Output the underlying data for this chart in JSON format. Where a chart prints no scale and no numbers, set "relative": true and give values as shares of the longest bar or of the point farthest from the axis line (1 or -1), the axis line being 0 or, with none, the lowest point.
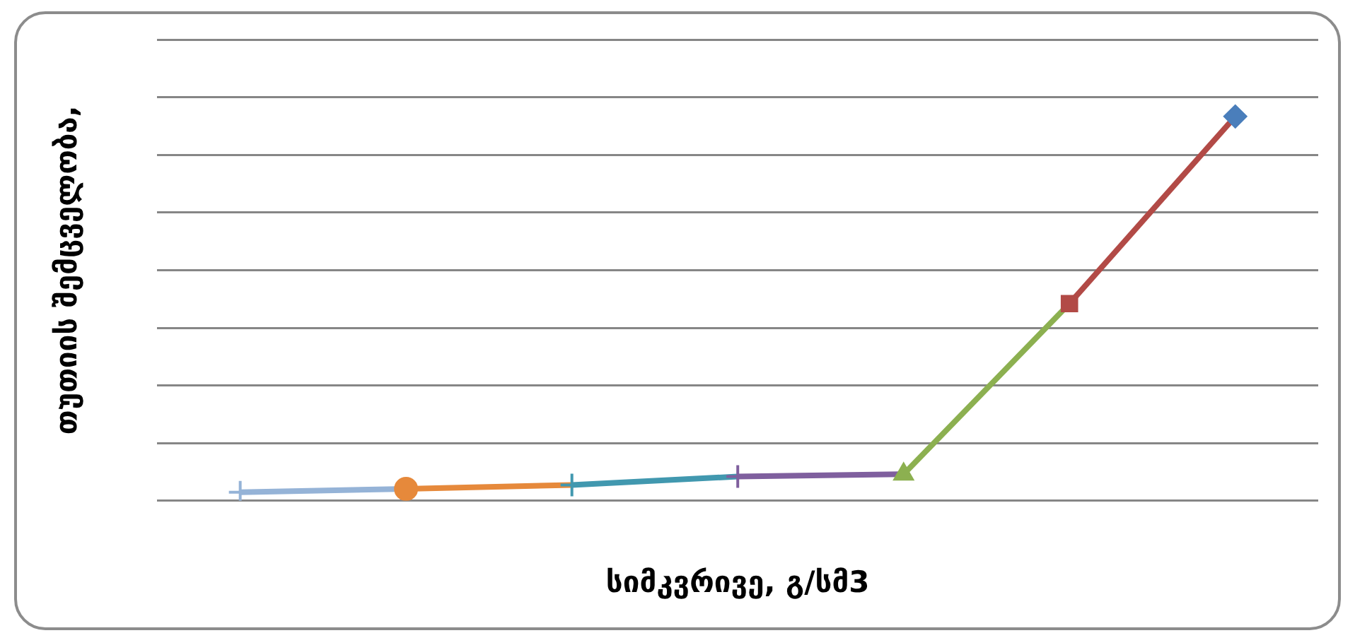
{
  "chart_data": {
    "type": "line",
    "relative": true,
    "xlabel": "სიმკვრივე, გ/სმ3",
    "ylabel": "თუთიის შემცველობა,",
    "categories": [
      null,
      null,
      null,
      null,
      null,
      null,
      null
    ],
    "grid": "y",
    "legend": false,
    "series": [
      {
        "color": "#4a7ebb",
        "marker": "diamond",
        "values": [
          null,
          null,
          null,
          null,
          null,
          null,
          1
        ]
      },
      {
        "color": "#b24a46",
        "marker": "square",
        "values": [
          null,
          null,
          null,
          null,
          null,
          0.513,
          1
        ]
      },
      {
        "color": "#8cb050",
        "marker": "triangle",
        "values": [
          null,
          null,
          null,
          null,
          0.069,
          0.513,
          null
        ]
      },
      {
        "color": "#7f5f9e",
        "marker": "cross",
        "values": [
          null,
          null,
          null,
          0.063,
          0.069,
          null,
          null
        ]
      },
      {
        "color": "#4198af",
        "marker": "cross",
        "values": [
          null,
          null,
          0.041,
          0.063,
          null,
          null,
          null
        ]
      },
      {
        "color": "#e6893b",
        "marker": "circle",
        "values": [
          null,
          0.031,
          0.041,
          null,
          null,
          null,
          null
        ]
      },
      {
        "color": "#95b3d7",
        "marker": "cross",
        "values": [
          0.022,
          0.031,
          null,
          null,
          null,
          null,
          null
        ]
      }
    ]
  }
}
